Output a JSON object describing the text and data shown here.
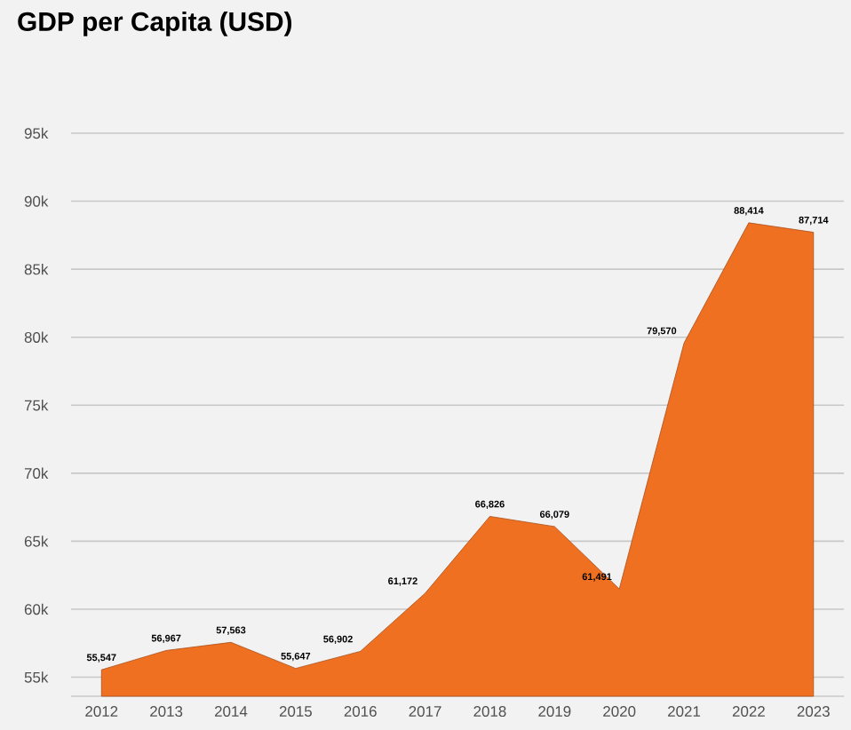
{
  "chart_data": {
    "type": "area",
    "title": "GDP per Capita (USD)",
    "categories": [
      "2012",
      "2013",
      "2014",
      "2015",
      "2016",
      "2017",
      "2018",
      "2019",
      "2020",
      "2021",
      "2022",
      "2023"
    ],
    "values": [
      55547,
      56967,
      57563,
      55647,
      56902,
      61172,
      66826,
      66079,
      61491,
      79570,
      88414,
      87714
    ],
    "value_labels": [
      "55,547",
      "56,967",
      "57,563",
      "55,647",
      "56,902",
      "61,172",
      "66,826",
      "66,079",
      "61,491",
      "79,570",
      "88,414",
      "87,714"
    ],
    "color": "#f07022",
    "ylim": [
      53600,
      95000
    ],
    "yticks": [
      {
        "value": 55000,
        "label": "55k"
      },
      {
        "value": 60000,
        "label": "60k"
      },
      {
        "value": 65000,
        "label": "65k"
      },
      {
        "value": 70000,
        "label": "70k"
      },
      {
        "value": 75000,
        "label": "75k"
      },
      {
        "value": 80000,
        "label": "80k"
      },
      {
        "value": 85000,
        "label": "85k"
      },
      {
        "value": 90000,
        "label": "90k"
      },
      {
        "value": 95000,
        "label": "95k"
      }
    ],
    "grid": "y"
  }
}
